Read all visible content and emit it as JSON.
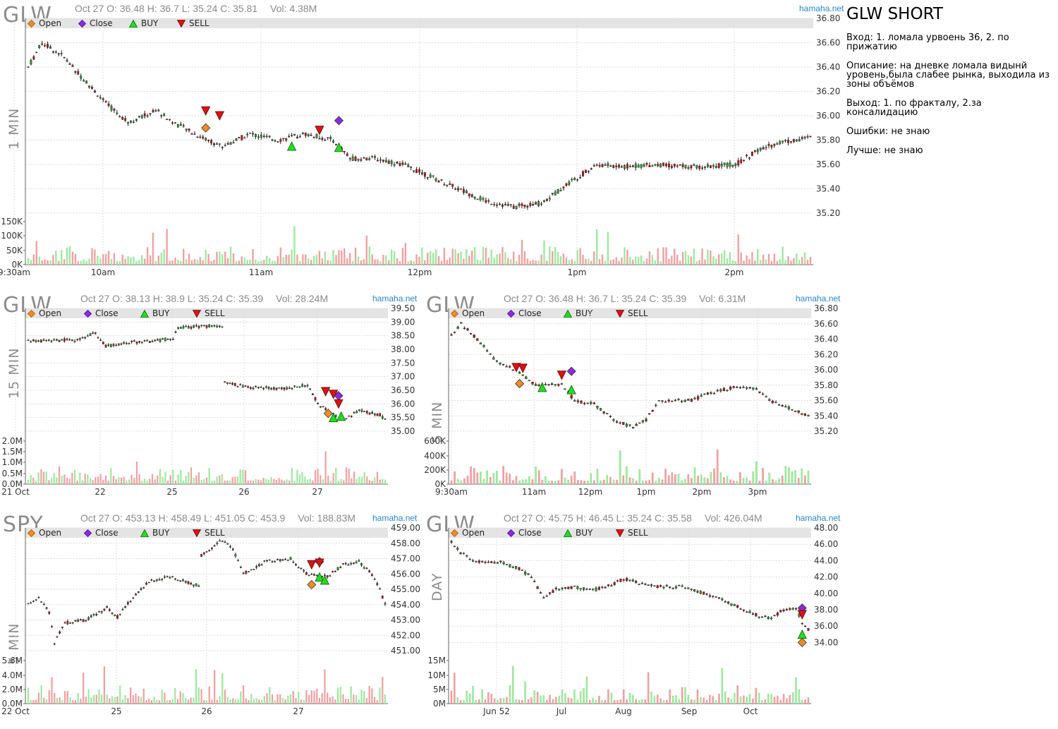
{
  "site": "hamaha.net",
  "legend": {
    "open": "Open",
    "close": "Close",
    "buy": "BUY",
    "sell": "SELL"
  },
  "colors": {
    "up": "#2e9e2e",
    "down": "#cc1111",
    "open_marker": "#f08c22",
    "close_marker": "#8a2be2",
    "buy_marker": "#22dd22",
    "sell_marker": "#dd1111",
    "vol_up": "#9ee89e",
    "vol_down": "#f0a0a0",
    "grid": "#dddddd",
    "site": "#2a86c8"
  },
  "notes": {
    "title": "GLW SHORT",
    "lines": [
      "Вход: 1. ломала урвоень 36, 2. по прижатию",
      "Описание: на дневке ломала видынй уровень,была слабее рынка, выходила из зоны объёмов",
      "Выход: 1. по фракталу, 2.за консалидацию",
      "Ошибки: не знаю",
      "Лучше: не знаю"
    ]
  },
  "charts": {
    "p1": {
      "ticker": "GLW",
      "timeframe": "1 MIN",
      "header": "Oct 27 O: 36.48 H: 36.7 L: 35.24 C: 35.81",
      "vol": "Vol: 4.38M"
    },
    "p2": {
      "ticker": "GLW",
      "timeframe": "15 MIN",
      "header": "Oct 27 O: 38.13 H: 38.9 L: 35.24 C: 35.39",
      "vol": "Vol: 28.24M"
    },
    "p3": {
      "ticker": "GLW",
      "timeframe": "5 MIN",
      "header": "Oct 27 O: 36.48 H: 36.7 L: 35.24 C: 35.39",
      "vol": "Vol: 6.31M"
    },
    "p4": {
      "ticker": "SPY",
      "timeframe": "5 MIN",
      "header": "Oct 27 O: 453.13 H: 458.49 L: 451.05 C: 453.9",
      "vol": "Vol: 188.83M"
    },
    "p5": {
      "ticker": "GLW",
      "timeframe": "DAY",
      "header": "Oct 27 O: 45.75 H: 46.45 L: 35.24 C: 35.58",
      "vol": "Vol: 426.04M"
    }
  },
  "chart_data": [
    {
      "id": "p1",
      "type": "candlestick",
      "title": "GLW 1 MIN",
      "ylim": [
        35.2,
        36.8
      ],
      "yticks": [
        "36.80",
        "36.60",
        "36.40",
        "36.20",
        "36.00",
        "35.80",
        "35.60",
        "35.40",
        "35.20"
      ],
      "xlabels": [
        "9:30am",
        "10am",
        "11am",
        "12pm",
        "1pm",
        "2pm"
      ],
      "price_path": [
        [
          0,
          36.4
        ],
        [
          5,
          36.6
        ],
        [
          12,
          36.5
        ],
        [
          20,
          36.3
        ],
        [
          28,
          36.1
        ],
        [
          36,
          35.95
        ],
        [
          42,
          36.0
        ],
        [
          46,
          36.05
        ],
        [
          52,
          35.95
        ],
        [
          60,
          35.85
        ],
        [
          70,
          35.75
        ],
        [
          80,
          35.85
        ],
        [
          90,
          35.8
        ],
        [
          100,
          35.85
        ],
        [
          110,
          35.8
        ],
        [
          116,
          35.65
        ],
        [
          125,
          35.65
        ],
        [
          135,
          35.6
        ],
        [
          150,
          35.45
        ],
        [
          165,
          35.3
        ],
        [
          175,
          35.25
        ],
        [
          185,
          35.28
        ],
        [
          195,
          35.45
        ],
        [
          205,
          35.6
        ],
        [
          215,
          35.58
        ],
        [
          225,
          35.6
        ],
        [
          240,
          35.58
        ],
        [
          255,
          35.6
        ],
        [
          262,
          35.7
        ],
        [
          270,
          35.78
        ],
        [
          282,
          35.82
        ]
      ],
      "n": 282,
      "ytick_vol": [
        "150K",
        "100K",
        "50K",
        "0K"
      ],
      "vol_max": 150,
      "markers": [
        {
          "t": "open",
          "i": 64,
          "y": 35.9
        },
        {
          "t": "sell",
          "i": 64,
          "y": 36.04
        },
        {
          "t": "sell",
          "i": 69,
          "y": 36.0
        },
        {
          "t": "buy",
          "i": 95,
          "y": 35.75
        },
        {
          "t": "sell",
          "i": 105,
          "y": 35.88
        },
        {
          "t": "close",
          "i": 112,
          "y": 35.96
        },
        {
          "t": "buy",
          "i": 112,
          "y": 35.74
        }
      ]
    },
    {
      "id": "p2",
      "type": "candlestick",
      "title": "GLW 15 MIN",
      "ylim": [
        35.0,
        39.5
      ],
      "yticks": [
        "39.50",
        "39.00",
        "38.50",
        "38.00",
        "37.50",
        "37.00",
        "36.50",
        "36.00",
        "35.50",
        "35.00"
      ],
      "xlabels": [
        "21 Oct",
        "22",
        "25",
        "26",
        "27"
      ],
      "price_path": [
        [
          0,
          38.3
        ],
        [
          18,
          38.35
        ],
        [
          26,
          38.6
        ],
        [
          30,
          38.1
        ],
        [
          38,
          38.25
        ],
        [
          48,
          38.3
        ],
        [
          56,
          38.4
        ],
        [
          58,
          38.8
        ],
        [
          70,
          38.85
        ],
        [
          75,
          38.8
        ],
        [
          76,
          36.8
        ],
        [
          85,
          36.6
        ],
        [
          100,
          36.55
        ],
        [
          108,
          36.7
        ],
        [
          112,
          36.0
        ],
        [
          118,
          35.6
        ],
        [
          122,
          35.4
        ],
        [
          128,
          35.75
        ],
        [
          136,
          35.6
        ],
        [
          138,
          35.4
        ]
      ],
      "gap_after": 75,
      "n": 138,
      "ytick_vol": [
        "2.0M",
        "1.5M",
        "1.0M",
        "0.5M",
        "0.0M"
      ],
      "vol_max": 2.0,
      "markers": [
        {
          "t": "sell",
          "i": 115,
          "y": 36.45
        },
        {
          "t": "sell",
          "i": 118,
          "y": 36.35
        },
        {
          "t": "close",
          "i": 120,
          "y": 36.3
        },
        {
          "t": "open",
          "i": 116,
          "y": 35.65
        },
        {
          "t": "buy",
          "i": 118,
          "y": 35.5
        },
        {
          "t": "buy",
          "i": 121,
          "y": 35.55
        },
        {
          "t": "sell",
          "i": 120,
          "y": 36.0
        }
      ]
    },
    {
      "id": "p3",
      "type": "candlestick",
      "title": "GLW 5 MIN",
      "ylim": [
        35.2,
        36.8
      ],
      "yticks": [
        "36.80",
        "36.60",
        "36.40",
        "36.20",
        "36.00",
        "35.80",
        "35.60",
        "35.40",
        "35.20"
      ],
      "xlabels": [
        "9:30am",
        "11am",
        "12pm",
        "1pm",
        "2pm",
        "3pm"
      ],
      "price_path": [
        [
          0,
          36.45
        ],
        [
          3,
          36.6
        ],
        [
          8,
          36.4
        ],
        [
          14,
          36.1
        ],
        [
          20,
          36.0
        ],
        [
          26,
          35.8
        ],
        [
          34,
          35.8
        ],
        [
          38,
          35.6
        ],
        [
          44,
          35.55
        ],
        [
          50,
          35.35
        ],
        [
          56,
          35.25
        ],
        [
          60,
          35.35
        ],
        [
          64,
          35.6
        ],
        [
          74,
          35.6
        ],
        [
          80,
          35.7
        ],
        [
          88,
          35.78
        ],
        [
          94,
          35.75
        ],
        [
          98,
          35.6
        ],
        [
          104,
          35.5
        ],
        [
          110,
          35.4
        ]
      ],
      "n": 110,
      "ytick_vol": [
        "600K",
        "400K",
        "200K",
        "0K"
      ],
      "vol_max": 600,
      "markers": [
        {
          "t": "sell",
          "i": 20,
          "y": 36.03
        },
        {
          "t": "sell",
          "i": 22,
          "y": 36.02
        },
        {
          "t": "open",
          "i": 21,
          "y": 35.82
        },
        {
          "t": "buy",
          "i": 28,
          "y": 35.77
        },
        {
          "t": "sell",
          "i": 34,
          "y": 35.93
        },
        {
          "t": "close",
          "i": 37,
          "y": 35.98
        },
        {
          "t": "buy",
          "i": 37,
          "y": 35.74
        }
      ]
    },
    {
      "id": "p4",
      "type": "candlestick",
      "title": "SPY 5 MIN",
      "ylim": [
        451.0,
        459.0
      ],
      "yticks": [
        "459.00",
        "458.00",
        "457.00",
        "456.00",
        "455.00",
        "454.00",
        "453.00",
        "452.00",
        "451.00"
      ],
      "xlabels": [
        "22 Oct",
        "25",
        "26",
        "27"
      ],
      "price_path": [
        [
          0,
          454
        ],
        [
          4,
          454.5
        ],
        [
          8,
          453.5
        ],
        [
          10,
          451.5
        ],
        [
          14,
          452.8
        ],
        [
          22,
          453.0
        ],
        [
          30,
          453.8
        ],
        [
          34,
          453.2
        ],
        [
          40,
          454.5
        ],
        [
          46,
          455.5
        ],
        [
          54,
          455.8
        ],
        [
          60,
          455.5
        ],
        [
          65,
          455.2
        ],
        [
          66,
          457.2
        ],
        [
          74,
          458.2
        ],
        [
          78,
          457.6
        ],
        [
          82,
          456.0
        ],
        [
          90,
          456.8
        ],
        [
          100,
          457.0
        ],
        [
          106,
          456.0
        ],
        [
          114,
          455.8
        ],
        [
          120,
          456.6
        ],
        [
          126,
          456.8
        ],
        [
          130,
          456.2
        ],
        [
          134,
          455.0
        ],
        [
          136,
          454.0
        ]
      ],
      "n": 136,
      "ytick_vol": [
        "5.6M",
        "4.0M",
        "2.0M",
        "0.0M"
      ],
      "vol_max": 6.0,
      "markers": [
        {
          "t": "sell",
          "i": 108,
          "y": 456.6
        },
        {
          "t": "close",
          "i": 111,
          "y": 456.8
        },
        {
          "t": "sell",
          "i": 111,
          "y": 456.7
        },
        {
          "t": "buy",
          "i": 111,
          "y": 455.8
        },
        {
          "t": "buy",
          "i": 113,
          "y": 455.6
        },
        {
          "t": "open",
          "i": 108,
          "y": 455.3
        }
      ]
    },
    {
      "id": "p5",
      "type": "candlestick",
      "title": "GLW DAY",
      "ylim": [
        33.0,
        48.0
      ],
      "yticks": [
        "48.00",
        "46.00",
        "44.00",
        "42.00",
        "40.00",
        "38.00",
        "36.00",
        "34.00"
      ],
      "xlabels": [
        "Jun 52",
        "Jul",
        "Aug",
        "Sep",
        "Oct"
      ],
      "price_path": [
        [
          0,
          46.2
        ],
        [
          3,
          45.0
        ],
        [
          8,
          43.8
        ],
        [
          16,
          43.8
        ],
        [
          22,
          43.0
        ],
        [
          26,
          42.0
        ],
        [
          30,
          39.5
        ],
        [
          34,
          40.5
        ],
        [
          40,
          40.8
        ],
        [
          46,
          40.4
        ],
        [
          52,
          41.0
        ],
        [
          56,
          41.8
        ],
        [
          62,
          41.2
        ],
        [
          68,
          40.8
        ],
        [
          76,
          40.8
        ],
        [
          82,
          40.0
        ],
        [
          88,
          39.2
        ],
        [
          94,
          38.2
        ],
        [
          100,
          37.2
        ],
        [
          104,
          37.0
        ],
        [
          108,
          38.0
        ],
        [
          112,
          38.2
        ],
        [
          114,
          36.5
        ],
        [
          116,
          35.6
        ]
      ],
      "n": 116,
      "ytick_vol": [
        "15M",
        "10M",
        "5M",
        "0M"
      ],
      "vol_max": 15,
      "markers": [
        {
          "t": "close",
          "i": 114,
          "y": 38.2
        },
        {
          "t": "sell",
          "i": 114,
          "y": 37.4
        },
        {
          "t": "buy",
          "i": 114,
          "y": 35.0
        },
        {
          "t": "open",
          "i": 114,
          "y": 34.0
        }
      ]
    }
  ]
}
